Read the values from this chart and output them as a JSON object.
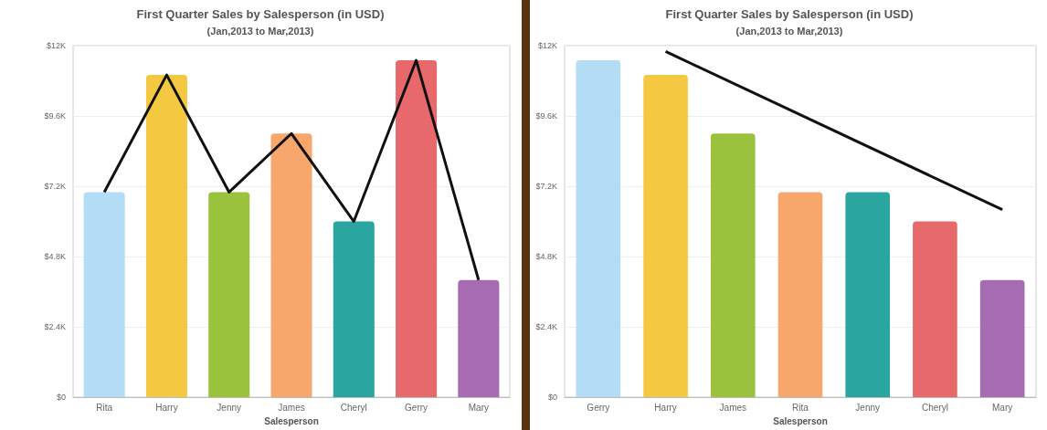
{
  "chart_data": [
    {
      "type": "bar",
      "title": "First Quarter Sales by Salesperson (in USD)",
      "subtitle": "(Jan,2013 to Mar,2013)",
      "xlabel": "Salesperson",
      "categories": [
        "Rita",
        "Harry",
        "Jenny",
        "James",
        "Cheryl",
        "Gerry",
        "Mary"
      ],
      "series": [
        {
          "colors": [
            "#b3dcf5",
            "#f5c842",
            "#9ac23c",
            "#f7a76c",
            "#2aa5a0",
            "#e8696b",
            "#a66bb0"
          ],
          "values": [
            7000,
            11000,
            7000,
            9000,
            6000,
            11500,
            4000
          ]
        },
        {
          "type": "line",
          "color": "#111111",
          "values": [
            7000,
            11000,
            7000,
            9000,
            6000,
            11500,
            4000
          ]
        }
      ],
      "ylim": [
        0,
        12000
      ],
      "yticks": [
        {
          "value": 0,
          "label": "$0"
        },
        {
          "value": 2400,
          "label": "$2.4K"
        },
        {
          "value": 4800,
          "label": "$4.8K"
        },
        {
          "value": 7200,
          "label": "$7.2K"
        },
        {
          "value": 9600,
          "label": "$9.6K"
        },
        {
          "value": 12000,
          "label": "$12K"
        }
      ],
      "grid": "y",
      "marker": "none"
    },
    {
      "type": "bar",
      "title": "First Quarter Sales by Salesperson (in USD)",
      "subtitle": "(Jan,2013 to Mar,2013)",
      "xlabel": "Salesperson",
      "categories": [
        "Gerry",
        "Harry",
        "James",
        "Rita",
        "Jenny",
        "Cheryl",
        "Mary"
      ],
      "series": [
        {
          "colors": [
            "#b3dcf5",
            "#f5c842",
            "#9ac23c",
            "#f7a76c",
            "#2aa5a0",
            "#e8696b",
            "#a66bb0"
          ],
          "values": [
            11500,
            11000,
            9000,
            7000,
            7000,
            6000,
            4000
          ]
        },
        {
          "type": "line",
          "color": "#111111",
          "x": [
            "Harry",
            "Mary"
          ],
          "values": [
            11800,
            6400
          ]
        }
      ],
      "ylim": [
        0,
        12000
      ],
      "yticks": [
        {
          "value": 0,
          "label": "$0"
        },
        {
          "value": 2400,
          "label": "$2.4K"
        },
        {
          "value": 4800,
          "label": "$4.8K"
        },
        {
          "value": 7200,
          "label": "$7.2K"
        },
        {
          "value": 9600,
          "label": "$9.6K"
        },
        {
          "value": 12000,
          "label": "$12K"
        }
      ],
      "grid": "y",
      "marker": "none"
    }
  ]
}
